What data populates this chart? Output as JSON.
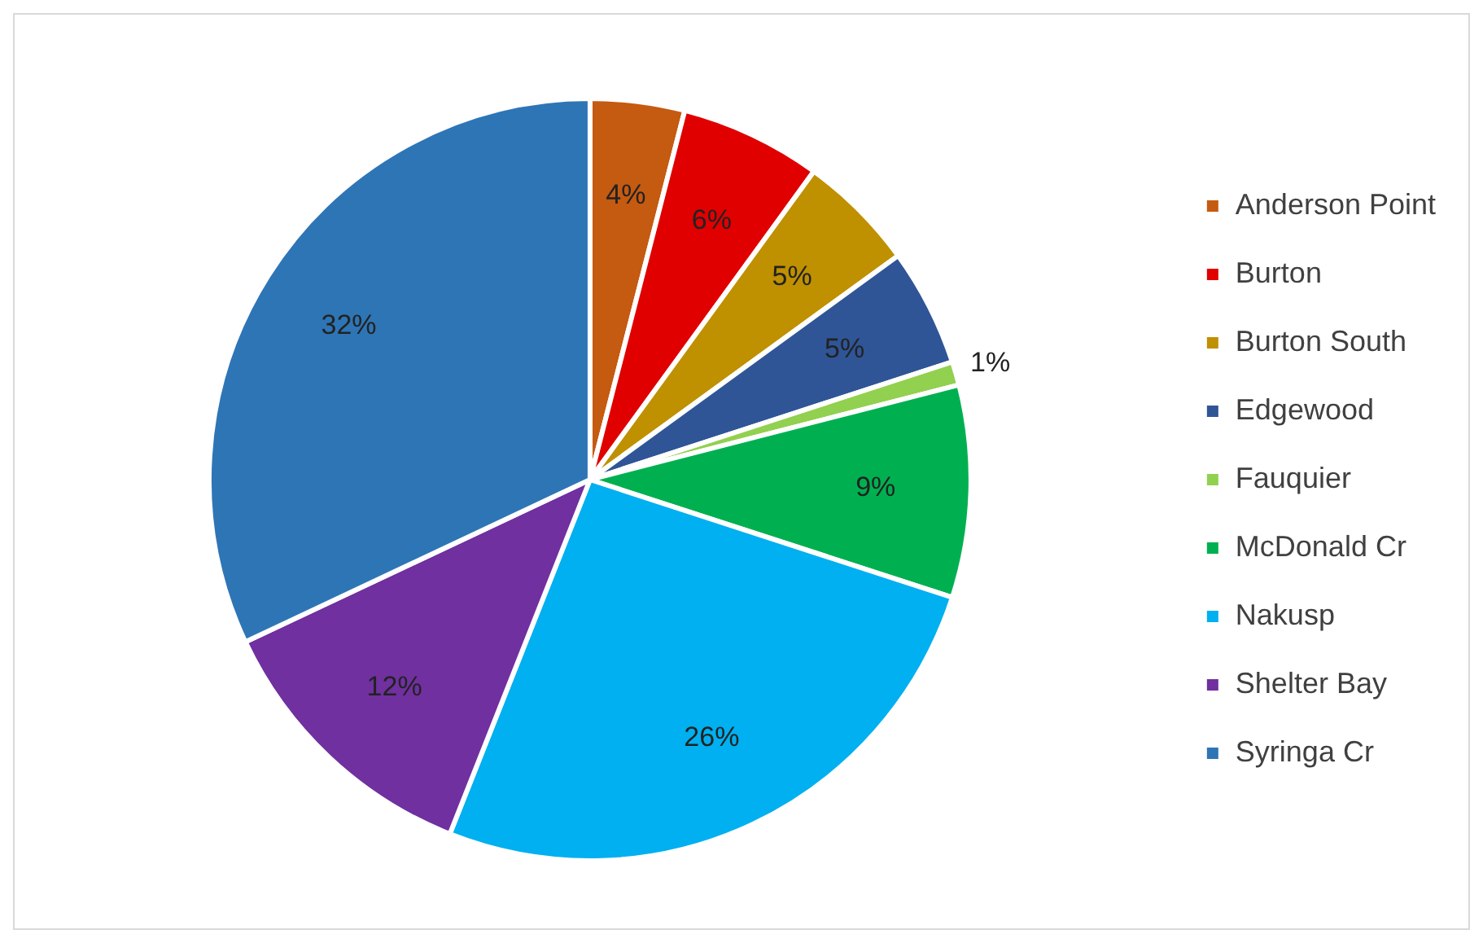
{
  "chart_data": {
    "type": "pie",
    "categories": [
      "Anderson Point",
      "Burton",
      "Burton South",
      "Edgewood",
      "Fauquier",
      "McDonald Cr",
      "Nakusp",
      "Shelter Bay",
      "Syringa Cr"
    ],
    "values": [
      4,
      6,
      5,
      5,
      1,
      9,
      26,
      12,
      32
    ],
    "colors": [
      "#c55a11",
      "#e00000",
      "#bf9000",
      "#2f5597",
      "#92d050",
      "#00b050",
      "#00b0f0",
      "#7030a0",
      "#2e75b6"
    ],
    "value_labels": [
      "4%",
      "6%",
      "5%",
      "5%",
      "1%",
      "9%",
      "26%",
      "12%",
      "32%"
    ],
    "legend": "right"
  }
}
